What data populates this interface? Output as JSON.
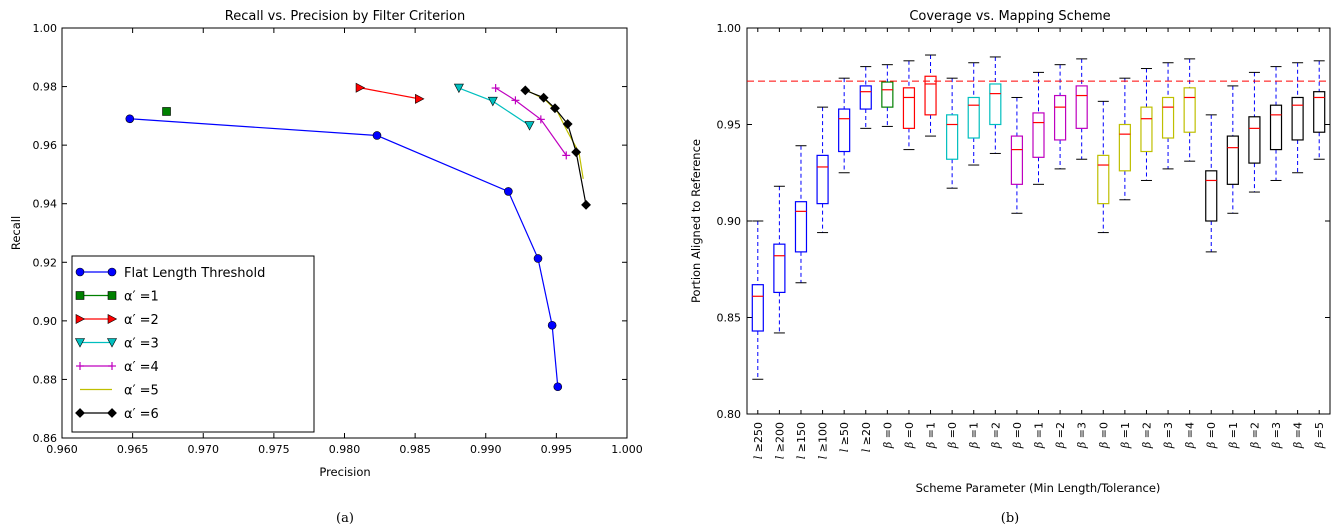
{
  "captions": {
    "a": "(a)",
    "b": "(b)"
  },
  "chart_data": [
    {
      "type": "line",
      "title": "Recall vs. Precision by Filter Criterion",
      "xlabel": "Precision",
      "ylabel": "Recall",
      "xlim": [
        0.96,
        1.0
      ],
      "ylim": [
        0.86,
        1.0
      ],
      "xticks": [
        "0.960",
        "0.965",
        "0.970",
        "0.975",
        "0.980",
        "0.985",
        "0.990",
        "0.995",
        "1.000"
      ],
      "yticks": [
        "0.86",
        "0.88",
        "0.90",
        "0.92",
        "0.94",
        "0.96",
        "0.98",
        "1.00"
      ],
      "legend_position": "lower-left",
      "grid": false,
      "series": [
        {
          "name": "Flat Length Threshold",
          "color": "#0000ff",
          "marker": "circle",
          "x": [
            0.9648,
            0.9823,
            0.9916,
            0.9937,
            0.9947,
            0.9951
          ],
          "y": [
            0.969,
            0.9633,
            0.9442,
            0.9213,
            0.8985,
            0.8775
          ]
        },
        {
          "name": "α′ =1",
          "color": "#008000",
          "marker": "square",
          "x": [
            0.9674
          ],
          "y": [
            0.9715
          ]
        },
        {
          "name": "α′ =2",
          "color": "#ff0000",
          "marker": "triangle-right",
          "x": [
            0.9811,
            0.9853
          ],
          "y": [
            0.9796,
            0.9758
          ]
        },
        {
          "name": "α′ =3",
          "color": "#00bfbf",
          "marker": "triangle-down",
          "x": [
            0.9881,
            0.9905,
            0.9931
          ],
          "y": [
            0.9795,
            0.975,
            0.9667
          ]
        },
        {
          "name": "α′ =4",
          "color": "#bf00bf",
          "marker": "plus",
          "x": [
            0.9907,
            0.9921,
            0.9939,
            0.9957
          ],
          "y": [
            0.9795,
            0.9753,
            0.9688,
            0.9565
          ]
        },
        {
          "name": "α′ =5",
          "color": "#bfbf00",
          "marker": "none",
          "x": [
            0.9928,
            0.9942,
            0.9951,
            0.9958,
            0.9966,
            0.9969
          ],
          "y": [
            0.979,
            0.9755,
            0.9712,
            0.9645,
            0.9575,
            0.9485
          ]
        },
        {
          "name": "α′ =6",
          "color": "#000000",
          "marker": "diamond",
          "x": [
            0.9928,
            0.9941,
            0.9949,
            0.9958,
            0.9964,
            0.9971
          ],
          "y": [
            0.9787,
            0.9762,
            0.9726,
            0.9672,
            0.9576,
            0.9396
          ]
        }
      ]
    },
    {
      "type": "box",
      "title": "Coverage vs. Mapping Scheme",
      "xlabel": "Scheme Parameter (Min Length/Tolerance)",
      "ylabel": "Portion Aligned to Reference",
      "ylim": [
        0.8,
        1.0
      ],
      "yticks": [
        "0.80",
        "0.85",
        "0.90",
        "0.95",
        "1.00"
      ],
      "reference_line": 0.9725,
      "reference_color": "#ff0000",
      "categories": [
        {
          "sym": "l",
          "op": "≥",
          "val": "250"
        },
        {
          "sym": "l",
          "op": "≥",
          "val": "200"
        },
        {
          "sym": "l",
          "op": "≥",
          "val": "150"
        },
        {
          "sym": "l",
          "op": "≥",
          "val": "100"
        },
        {
          "sym": "l",
          "op": "≥",
          "val": "50"
        },
        {
          "sym": "l",
          "op": "≥",
          "val": "20"
        },
        {
          "sym": "β",
          "op": "=",
          "val": "0"
        },
        {
          "sym": "β",
          "op": "=",
          "val": "0"
        },
        {
          "sym": "β",
          "op": "=",
          "val": "1"
        },
        {
          "sym": "β",
          "op": "=",
          "val": "0"
        },
        {
          "sym": "β",
          "op": "=",
          "val": "1"
        },
        {
          "sym": "β",
          "op": "=",
          "val": "2"
        },
        {
          "sym": "β",
          "op": "=",
          "val": "0"
        },
        {
          "sym": "β",
          "op": "=",
          "val": "1"
        },
        {
          "sym": "β",
          "op": "=",
          "val": "2"
        },
        {
          "sym": "β",
          "op": "=",
          "val": "3"
        },
        {
          "sym": "β",
          "op": "=",
          "val": "0"
        },
        {
          "sym": "β",
          "op": "=",
          "val": "1"
        },
        {
          "sym": "β",
          "op": "=",
          "val": "2"
        },
        {
          "sym": "β",
          "op": "=",
          "val": "3"
        },
        {
          "sym": "β",
          "op": "=",
          "val": "4"
        },
        {
          "sym": "β",
          "op": "=",
          "val": "0"
        },
        {
          "sym": "β",
          "op": "=",
          "val": "1"
        },
        {
          "sym": "β",
          "op": "=",
          "val": "2"
        },
        {
          "sym": "β",
          "op": "=",
          "val": "3"
        },
        {
          "sym": "β",
          "op": "=",
          "val": "4"
        },
        {
          "sym": "β",
          "op": "=",
          "val": "5"
        }
      ],
      "boxes": [
        {
          "color": "#0000ff",
          "wmin": 0.818,
          "q1": 0.843,
          "med": 0.861,
          "q3": 0.867,
          "wmax": 0.9
        },
        {
          "color": "#0000ff",
          "wmin": 0.842,
          "q1": 0.863,
          "med": 0.882,
          "q3": 0.888,
          "wmax": 0.918
        },
        {
          "color": "#0000ff",
          "wmin": 0.868,
          "q1": 0.884,
          "med": 0.905,
          "q3": 0.91,
          "wmax": 0.939
        },
        {
          "color": "#0000ff",
          "wmin": 0.894,
          "q1": 0.909,
          "med": 0.928,
          "q3": 0.934,
          "wmax": 0.959
        },
        {
          "color": "#0000ff",
          "wmin": 0.925,
          "q1": 0.936,
          "med": 0.953,
          "q3": 0.958,
          "wmax": 0.974
        },
        {
          "color": "#0000ff",
          "wmin": 0.948,
          "q1": 0.958,
          "med": 0.967,
          "q3": 0.97,
          "wmax": 0.98
        },
        {
          "color": "#008000",
          "wmin": 0.949,
          "q1": 0.959,
          "med": 0.968,
          "q3": 0.972,
          "wmax": 0.981
        },
        {
          "color": "#ff0000",
          "wmin": 0.937,
          "q1": 0.948,
          "med": 0.964,
          "q3": 0.969,
          "wmax": 0.983
        },
        {
          "color": "#ff0000",
          "wmin": 0.944,
          "q1": 0.955,
          "med": 0.971,
          "q3": 0.975,
          "wmax": 0.986
        },
        {
          "color": "#00bfbf",
          "wmin": 0.917,
          "q1": 0.932,
          "med": 0.95,
          "q3": 0.955,
          "wmax": 0.974
        },
        {
          "color": "#00bfbf",
          "wmin": 0.929,
          "q1": 0.943,
          "med": 0.96,
          "q3": 0.964,
          "wmax": 0.982
        },
        {
          "color": "#00bfbf",
          "wmin": 0.935,
          "q1": 0.95,
          "med": 0.966,
          "q3": 0.971,
          "wmax": 0.985
        },
        {
          "color": "#bf00bf",
          "wmin": 0.904,
          "q1": 0.919,
          "med": 0.937,
          "q3": 0.944,
          "wmax": 0.964
        },
        {
          "color": "#bf00bf",
          "wmin": 0.919,
          "q1": 0.933,
          "med": 0.951,
          "q3": 0.956,
          "wmax": 0.977
        },
        {
          "color": "#bf00bf",
          "wmin": 0.927,
          "q1": 0.942,
          "med": 0.959,
          "q3": 0.965,
          "wmax": 0.981
        },
        {
          "color": "#bf00bf",
          "wmin": 0.932,
          "q1": 0.948,
          "med": 0.965,
          "q3": 0.97,
          "wmax": 0.984
        },
        {
          "color": "#bfbf00",
          "wmin": 0.894,
          "q1": 0.909,
          "med": 0.929,
          "q3": 0.934,
          "wmax": 0.962
        },
        {
          "color": "#bfbf00",
          "wmin": 0.911,
          "q1": 0.926,
          "med": 0.945,
          "q3": 0.95,
          "wmax": 0.974
        },
        {
          "color": "#bfbf00",
          "wmin": 0.921,
          "q1": 0.936,
          "med": 0.953,
          "q3": 0.959,
          "wmax": 0.979
        },
        {
          "color": "#bfbf00",
          "wmin": 0.927,
          "q1": 0.943,
          "med": 0.959,
          "q3": 0.964,
          "wmax": 0.982
        },
        {
          "color": "#bfbf00",
          "wmin": 0.931,
          "q1": 0.946,
          "med": 0.964,
          "q3": 0.969,
          "wmax": 0.984
        },
        {
          "color": "#000000",
          "wmin": 0.884,
          "q1": 0.9,
          "med": 0.921,
          "q3": 0.926,
          "wmax": 0.955
        },
        {
          "color": "#000000",
          "wmin": 0.904,
          "q1": 0.919,
          "med": 0.938,
          "q3": 0.944,
          "wmax": 0.97
        },
        {
          "color": "#000000",
          "wmin": 0.915,
          "q1": 0.93,
          "med": 0.948,
          "q3": 0.954,
          "wmax": 0.977
        },
        {
          "color": "#000000",
          "wmin": 0.921,
          "q1": 0.937,
          "med": 0.955,
          "q3": 0.96,
          "wmax": 0.98
        },
        {
          "color": "#000000",
          "wmin": 0.925,
          "q1": 0.942,
          "med": 0.96,
          "q3": 0.964,
          "wmax": 0.982
        },
        {
          "color": "#000000",
          "wmin": 0.932,
          "q1": 0.946,
          "med": 0.964,
          "q3": 0.967,
          "wmax": 0.983
        }
      ]
    }
  ]
}
